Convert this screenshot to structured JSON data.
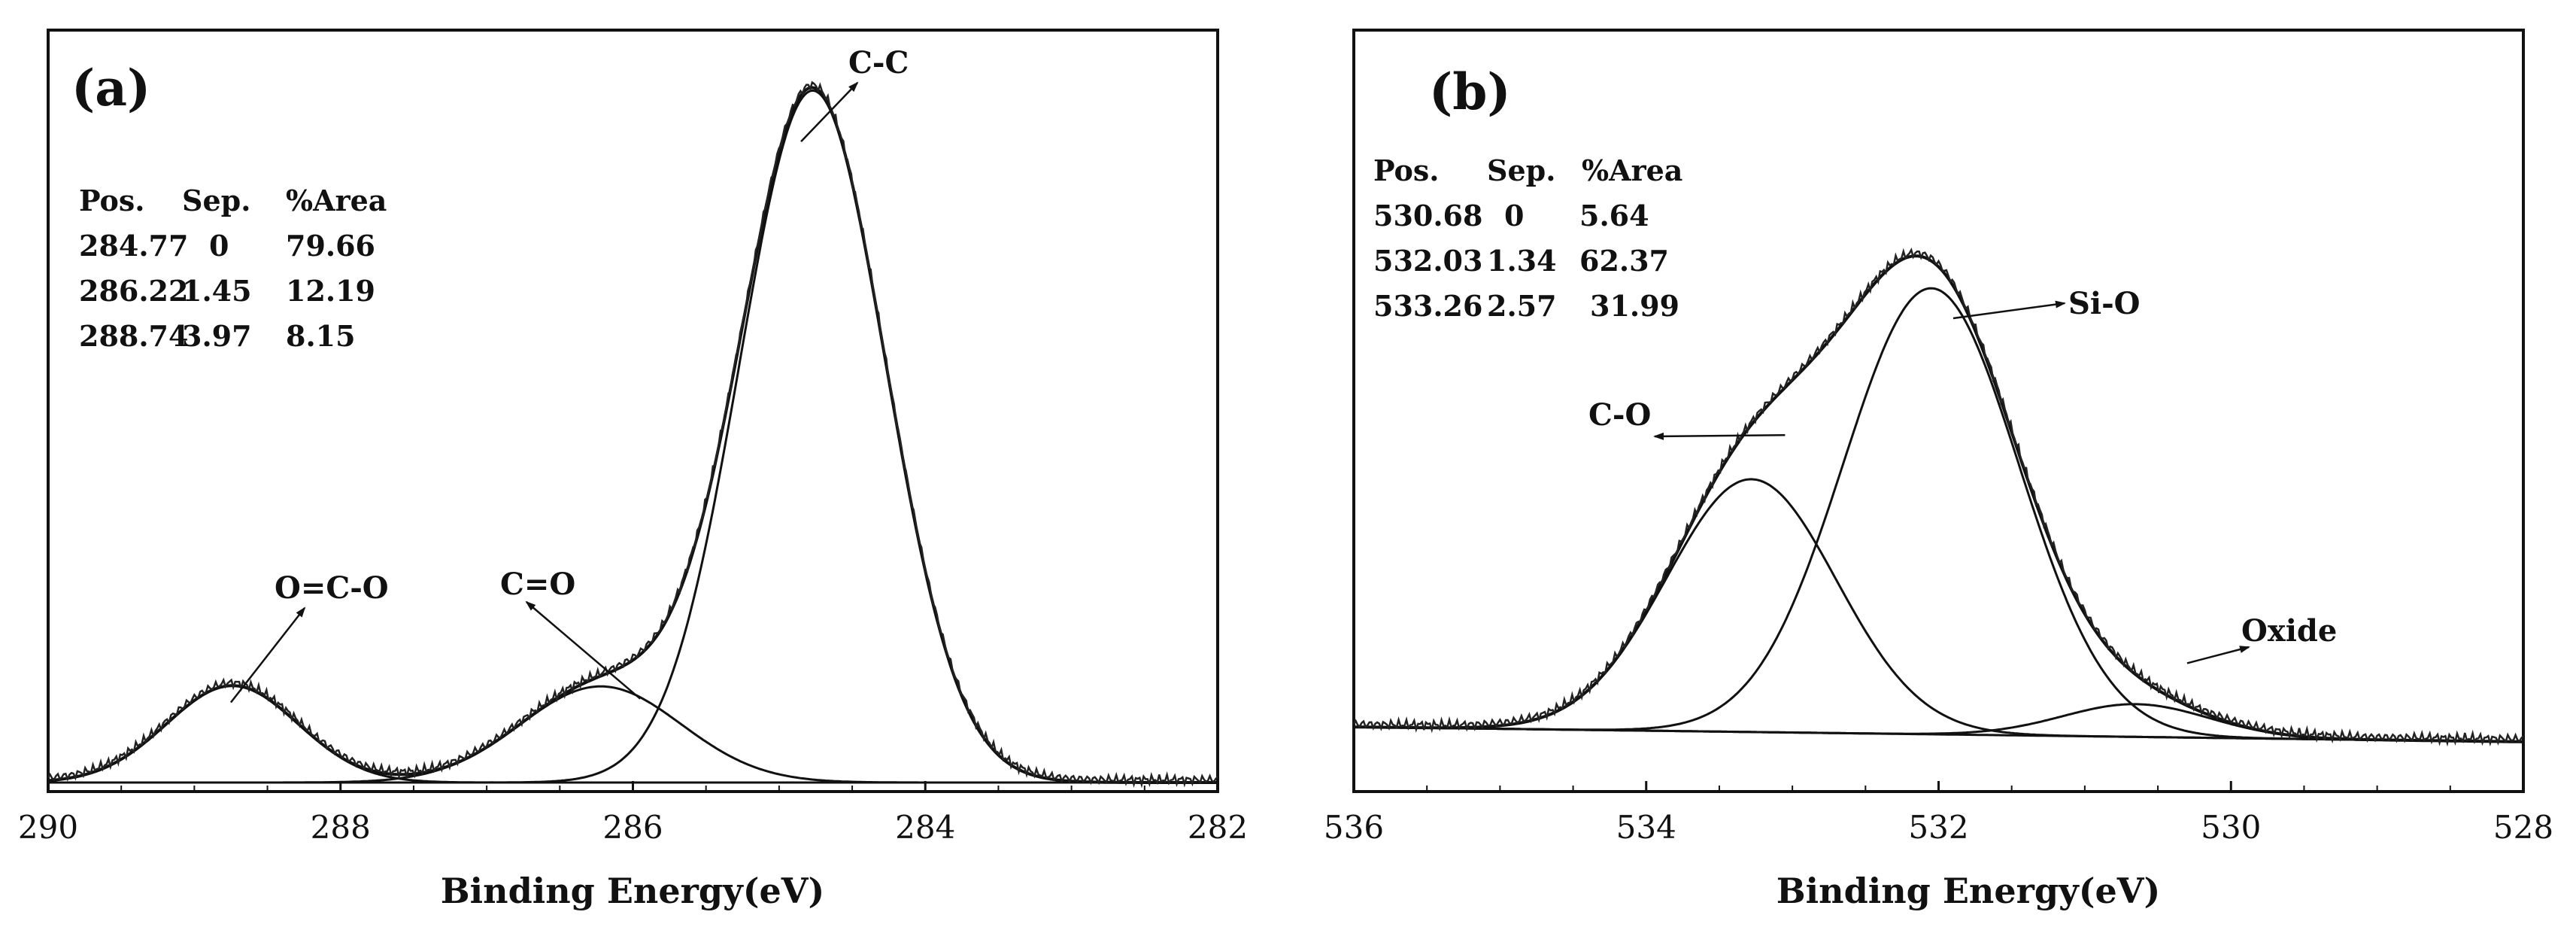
{
  "chart_data": [
    {
      "type": "line",
      "panel_label": "(a)",
      "xlabel": "Binding Energy(eV)",
      "ylabel": "",
      "xlim": [
        290,
        282
      ],
      "ylim": [
        0,
        1
      ],
      "x_reversed": true,
      "x_ticks": [
        290,
        288,
        286,
        284,
        282
      ],
      "x_tick_labels": [
        "290",
        "288",
        "286",
        "284",
        "282"
      ],
      "y_ticks_visible": false,
      "table": {
        "headers": [
          "Pos.",
          "Sep.",
          "%Area"
        ],
        "rows": [
          [
            "284.77",
            "0",
            "79.66"
          ],
          [
            "286.22",
            "1.45",
            "12.19"
          ],
          [
            "288.74",
            "3.97",
            "8.15"
          ]
        ]
      },
      "background": {
        "start": 0.0,
        "end": 0.0
      },
      "components": [
        {
          "name": "C-C",
          "center": 284.77,
          "height": 0.95,
          "sigma": 0.5
        },
        {
          "name": "C=O",
          "center": 286.22,
          "height": 0.132,
          "sigma": 0.55
        },
        {
          "name": "O=C-O",
          "center": 288.74,
          "height": 0.133,
          "sigma": 0.45
        }
      ],
      "annotations": [
        {
          "text": "C-C",
          "target_x": 284.85,
          "target_y": 0.88
        },
        {
          "text": "C=O",
          "target_x": 285.95,
          "target_y": 0.115
        },
        {
          "text": "O=C-O",
          "target_x": 288.75,
          "target_y": 0.11
        }
      ]
    },
    {
      "type": "line",
      "panel_label": "(b)",
      "xlabel": "Binding Energy(eV)",
      "ylabel": "",
      "xlim": [
        536,
        528
      ],
      "ylim": [
        0,
        1
      ],
      "x_reversed": true,
      "x_ticks": [
        536,
        534,
        532,
        530,
        528
      ],
      "x_tick_labels": [
        "536",
        "534",
        "532",
        "530",
        "528"
      ],
      "y_ticks_visible": false,
      "table": {
        "headers": [
          "Pos.",
          "Sep.",
          "%Area"
        ],
        "rows": [
          [
            "530.68",
            "0",
            "5.64"
          ],
          [
            "532.03",
            "1.34",
            "62.37"
          ],
          [
            "533.26",
            "2.57",
            "31.99"
          ]
        ]
      },
      "background": {
        "start": 0.095,
        "end": 0.075
      },
      "components": [
        {
          "name": "Si-O",
          "center": 532.05,
          "height": 0.6,
          "sigma": 0.6
        },
        {
          "name": "C-O",
          "center": 533.28,
          "height": 0.34,
          "sigma": 0.58
        },
        {
          "name": "Oxide",
          "center": 530.65,
          "height": 0.044,
          "sigma": 0.5
        }
      ],
      "annotations": [
        {
          "text": "Si-O",
          "target_x": 531.9,
          "target_y": 0.56
        },
        {
          "text": "C-O",
          "target_x": 533.05,
          "target_y": 0.4
        },
        {
          "text": "Oxide",
          "target_x": 530.3,
          "target_y": 0.1
        }
      ]
    }
  ]
}
